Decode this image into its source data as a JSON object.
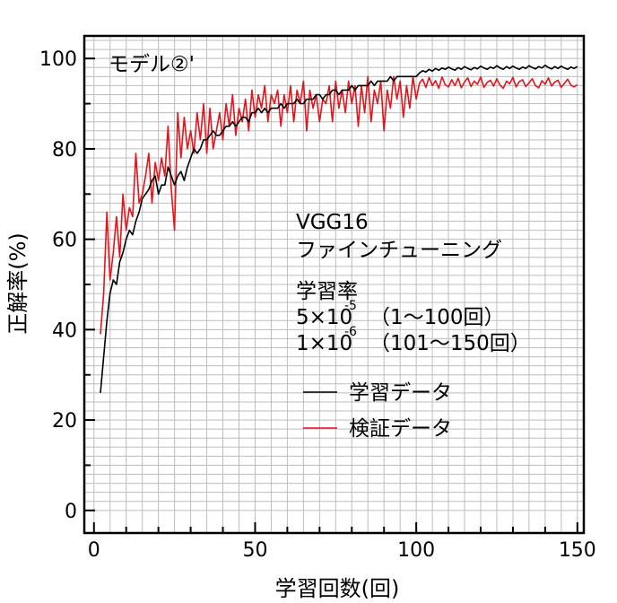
{
  "chart_data": {
    "type": "line",
    "title": "モデル②'",
    "xlabel": "学習回数(回)",
    "ylabel": "正解率(%)",
    "xlim": [
      -3,
      152
    ],
    "ylim": [
      -5,
      105
    ],
    "xticks": [
      0,
      50,
      100,
      150
    ],
    "yticks": [
      0,
      20,
      40,
      60,
      80,
      100
    ],
    "grid": true,
    "legend_position": "right-middle",
    "annotation": {
      "model_line1": "VGG16",
      "model_line2": "ファインチューニング",
      "lr_title": "学習率",
      "lr1_base": "5×10",
      "lr1_exp": "-5",
      "lr1_range": "（1～100回）",
      "lr2_base": "1×10",
      "lr2_exp": "-6",
      "lr2_range": "（101～150回）"
    },
    "series": [
      {
        "name": "学習データ",
        "color": "#000000",
        "x": [
          2,
          3,
          4,
          5,
          6,
          7,
          8,
          9,
          10,
          11,
          12,
          13,
          14,
          15,
          16,
          17,
          18,
          19,
          20,
          21,
          22,
          23,
          24,
          25,
          26,
          27,
          28,
          29,
          30,
          31,
          32,
          33,
          34,
          35,
          36,
          37,
          38,
          39,
          40,
          41,
          42,
          43,
          44,
          45,
          46,
          47,
          48,
          49,
          50,
          51,
          52,
          53,
          54,
          55,
          56,
          57,
          58,
          59,
          60,
          61,
          62,
          63,
          64,
          65,
          66,
          67,
          68,
          69,
          70,
          71,
          72,
          73,
          74,
          75,
          76,
          77,
          78,
          79,
          80,
          81,
          82,
          83,
          84,
          85,
          86,
          87,
          88,
          89,
          90,
          91,
          92,
          93,
          94,
          95,
          96,
          97,
          98,
          99,
          100,
          101,
          102,
          103,
          104,
          105,
          106,
          107,
          108,
          109,
          110,
          111,
          112,
          113,
          114,
          115,
          116,
          117,
          118,
          119,
          120,
          121,
          122,
          123,
          124,
          125,
          126,
          127,
          128,
          129,
          130,
          131,
          132,
          133,
          134,
          135,
          136,
          137,
          138,
          139,
          140,
          141,
          142,
          143,
          144,
          145,
          146,
          147,
          148,
          149,
          150
        ],
        "y": [
          26,
          34,
          42,
          48,
          51,
          50,
          55,
          57,
          60,
          62,
          61,
          64,
          66,
          69,
          70,
          71,
          73,
          74,
          70,
          72,
          72,
          76,
          74,
          72,
          74,
          75,
          73,
          76,
          78,
          80,
          79,
          80,
          82,
          82,
          83,
          84,
          83,
          83,
          84,
          85,
          85,
          86,
          85,
          86,
          87,
          87,
          86,
          88,
          88,
          89,
          88,
          89,
          88,
          89,
          89,
          89,
          90,
          89,
          90,
          90,
          90,
          91,
          90,
          90,
          91,
          91,
          91,
          92,
          92,
          91,
          92,
          92,
          93,
          93,
          92,
          93,
          93,
          93,
          94,
          93,
          94,
          94,
          94,
          94,
          95,
          94,
          95,
          95,
          95,
          95,
          96,
          95,
          96,
          96,
          96,
          96,
          96,
          96,
          96,
          96.8,
          97.3,
          97.0,
          97.6,
          97.2,
          97.8,
          97.4,
          97.9,
          97.6,
          98.1,
          97.7,
          97.4,
          98.0,
          97.6,
          98.2,
          97.8,
          97.5,
          98.0,
          97.7,
          98.3,
          97.9,
          97.6,
          98.1,
          97.8,
          98.4,
          97.9,
          97.6,
          98.2,
          97.8,
          98.3,
          97.9,
          97.6,
          98.1,
          97.8,
          98.4,
          98.0,
          97.7,
          98.2,
          97.9,
          98.5,
          98.0,
          97.7,
          98.2,
          97.8,
          98.3,
          97.9,
          97.6,
          98.1,
          97.8,
          98.2
        ]
      },
      {
        "name": "検証データ",
        "color": "#e3141b",
        "x": [
          2,
          3,
          4,
          5,
          6,
          7,
          8,
          9,
          10,
          11,
          12,
          13,
          14,
          15,
          16,
          17,
          18,
          19,
          20,
          21,
          22,
          23,
          24,
          25,
          26,
          27,
          28,
          29,
          30,
          31,
          32,
          33,
          34,
          35,
          36,
          37,
          38,
          39,
          40,
          41,
          42,
          43,
          44,
          45,
          46,
          47,
          48,
          49,
          50,
          51,
          52,
          53,
          54,
          55,
          56,
          57,
          58,
          59,
          60,
          61,
          62,
          63,
          64,
          65,
          66,
          67,
          68,
          69,
          70,
          71,
          72,
          73,
          74,
          75,
          76,
          77,
          78,
          79,
          80,
          81,
          82,
          83,
          84,
          85,
          86,
          87,
          88,
          89,
          90,
          91,
          92,
          93,
          94,
          95,
          96,
          97,
          98,
          99,
          100,
          101,
          102,
          103,
          104,
          105,
          106,
          107,
          108,
          109,
          110,
          111,
          112,
          113,
          114,
          115,
          116,
          117,
          118,
          119,
          120,
          121,
          122,
          123,
          124,
          125,
          126,
          127,
          128,
          129,
          130,
          131,
          132,
          133,
          134,
          135,
          136,
          137,
          138,
          139,
          140,
          141,
          142,
          143,
          144,
          145,
          146,
          147,
          148,
          149,
          150
        ],
        "y": [
          39,
          48,
          66,
          51,
          57,
          65,
          56,
          70,
          62,
          67,
          65,
          79,
          68,
          70,
          74,
          79,
          68,
          77,
          73,
          78,
          74,
          85,
          71,
          62,
          88,
          78,
          87,
          80,
          84,
          79,
          88,
          82,
          90,
          79,
          89,
          80,
          84,
          88,
          82,
          90,
          85,
          92,
          83,
          89,
          86,
          91,
          84,
          93,
          87,
          92,
          89,
          94,
          86,
          92,
          90,
          93,
          85,
          92,
          88,
          94,
          86,
          93,
          90,
          95,
          84,
          93,
          89,
          92,
          86,
          91,
          90,
          94,
          86,
          95,
          89,
          93,
          88,
          95,
          90,
          94,
          85,
          94,
          88,
          96,
          86,
          93,
          90,
          95,
          84,
          93,
          89,
          96,
          91,
          95,
          87,
          94,
          89,
          96,
          91,
          94.5,
          95.4,
          93.6,
          95.8,
          94.0,
          95.1,
          93.4,
          95.9,
          94.2,
          93.7,
          95.3,
          94.0,
          95.6,
          93.5,
          94.8,
          95.7,
          93.8,
          95.0,
          94.3,
          95.9,
          93.6,
          94.7,
          95.2,
          93.9,
          95.5,
          94.1,
          93.4,
          95.0,
          94.4,
          95.8,
          93.7,
          94.9,
          95.3,
          93.8,
          94.6,
          95.5,
          94.0,
          93.5,
          95.1,
          94.3,
          95.7,
          93.9,
          94.8,
          95.2,
          93.6,
          94.5,
          95.4,
          94.1,
          93.7,
          94.2
        ]
      }
    ]
  }
}
